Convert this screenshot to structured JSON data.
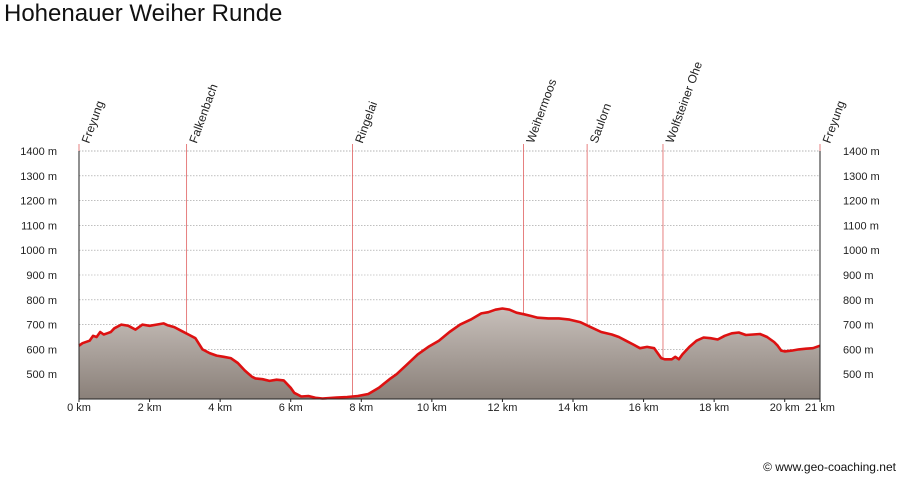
{
  "title": "Hohenauer Weiher Runde",
  "copyright": "© www.geo-coaching.net",
  "colors": {
    "profile_line": "#dd1111",
    "waypoint_line": "#e06060",
    "fill_top": "#c7bfba",
    "fill_bottom": "#8a8079",
    "grid": "#999999",
    "axis": "#222222"
  },
  "chart_data": {
    "type": "area",
    "title": "Hohenauer Weiher Runde",
    "xlabel": "",
    "ylabel": "",
    "x_unit": "km",
    "y_unit": "m",
    "xlim": [
      0,
      21
    ],
    "ylim": [
      400,
      1400
    ],
    "grid": true,
    "x_ticks": [
      {
        "value": 0,
        "label": "0 km"
      },
      {
        "value": 2,
        "label": "2 km"
      },
      {
        "value": 4,
        "label": "4 km"
      },
      {
        "value": 6,
        "label": "6 km"
      },
      {
        "value": 8,
        "label": "8 km"
      },
      {
        "value": 10,
        "label": "10 km"
      },
      {
        "value": 12,
        "label": "12 km"
      },
      {
        "value": 14,
        "label": "14 km"
      },
      {
        "value": 16,
        "label": "16 km"
      },
      {
        "value": 18,
        "label": "18 km"
      },
      {
        "value": 20,
        "label": "20 km"
      },
      {
        "value": 21,
        "label": "21 km"
      }
    ],
    "y_ticks": [
      {
        "value": 500,
        "label": "500 m"
      },
      {
        "value": 600,
        "label": "600 m"
      },
      {
        "value": 700,
        "label": "700 m"
      },
      {
        "value": 800,
        "label": "800 m"
      },
      {
        "value": 900,
        "label": "900 m"
      },
      {
        "value": 1000,
        "label": "1000 m"
      },
      {
        "value": 1100,
        "label": "1100 m"
      },
      {
        "value": 1200,
        "label": "1200 m"
      },
      {
        "value": 1300,
        "label": "1300 m"
      },
      {
        "value": 1400,
        "label": "1400 m"
      }
    ],
    "waypoints": [
      {
        "name": "Freyung",
        "km": 0.0
      },
      {
        "name": "Falkenbach",
        "km": 3.05
      },
      {
        "name": "Ringelai",
        "km": 7.75
      },
      {
        "name": "Weihermoos",
        "km": 12.6
      },
      {
        "name": "Saulorn",
        "km": 14.4
      },
      {
        "name": "Wolfsteiner Ohe",
        "km": 16.55
      },
      {
        "name": "Freyung",
        "km": 21.0
      }
    ],
    "series": [
      {
        "x": [
          0,
          0.1,
          0.3,
          0.4,
          0.5,
          0.6,
          0.7,
          0.8,
          0.9,
          1.0,
          1.2,
          1.4,
          1.6,
          1.8,
          2.0,
          2.2,
          2.4,
          2.5,
          2.7,
          2.9,
          3.1,
          3.3,
          3.5,
          3.7,
          3.9,
          4.1,
          4.3,
          4.5,
          4.7,
          4.9,
          5.0,
          5.2,
          5.4,
          5.6,
          5.8,
          6.0,
          6.1,
          6.3,
          6.5,
          6.7,
          6.9,
          7.0,
          7.3,
          7.6,
          7.9,
          8.2,
          8.5,
          8.8,
          9.0,
          9.3,
          9.6,
          9.9,
          10.2,
          10.5,
          10.8,
          11.1,
          11.4,
          11.6,
          11.8,
          12.0,
          12.2,
          12.4,
          12.6,
          12.8,
          13.0,
          13.3,
          13.6,
          13.9,
          14.2,
          14.5,
          14.8,
          15.1,
          15.3,
          15.5,
          15.7,
          15.9,
          16.1,
          16.3,
          16.5,
          16.6,
          16.8,
          16.9,
          17.0,
          17.1,
          17.3,
          17.5,
          17.7,
          17.9,
          18.1,
          18.3,
          18.5,
          18.7,
          18.9,
          19.1,
          19.3,
          19.5,
          19.7,
          19.8,
          19.9,
          20.0,
          20.2,
          20.4,
          20.6,
          20.8,
          21.0
        ],
        "y": [
          615,
          625,
          635,
          655,
          650,
          670,
          660,
          665,
          670,
          685,
          700,
          695,
          680,
          700,
          695,
          700,
          705,
          698,
          690,
          675,
          660,
          645,
          600,
          585,
          575,
          570,
          565,
          545,
          515,
          490,
          483,
          480,
          473,
          478,
          475,
          445,
          425,
          410,
          412,
          405,
          402,
          403,
          406,
          408,
          412,
          420,
          445,
          480,
          500,
          540,
          580,
          610,
          635,
          670,
          700,
          720,
          745,
          750,
          760,
          765,
          760,
          748,
          742,
          735,
          728,
          725,
          725,
          720,
          710,
          690,
          670,
          660,
          650,
          635,
          620,
          605,
          610,
          605,
          565,
          560,
          560,
          570,
          560,
          580,
          610,
          635,
          648,
          645,
          640,
          655,
          665,
          668,
          658,
          660,
          662,
          650,
          630,
          615,
          595,
          592,
          595,
          600,
          603,
          605,
          615
        ]
      }
    ]
  }
}
